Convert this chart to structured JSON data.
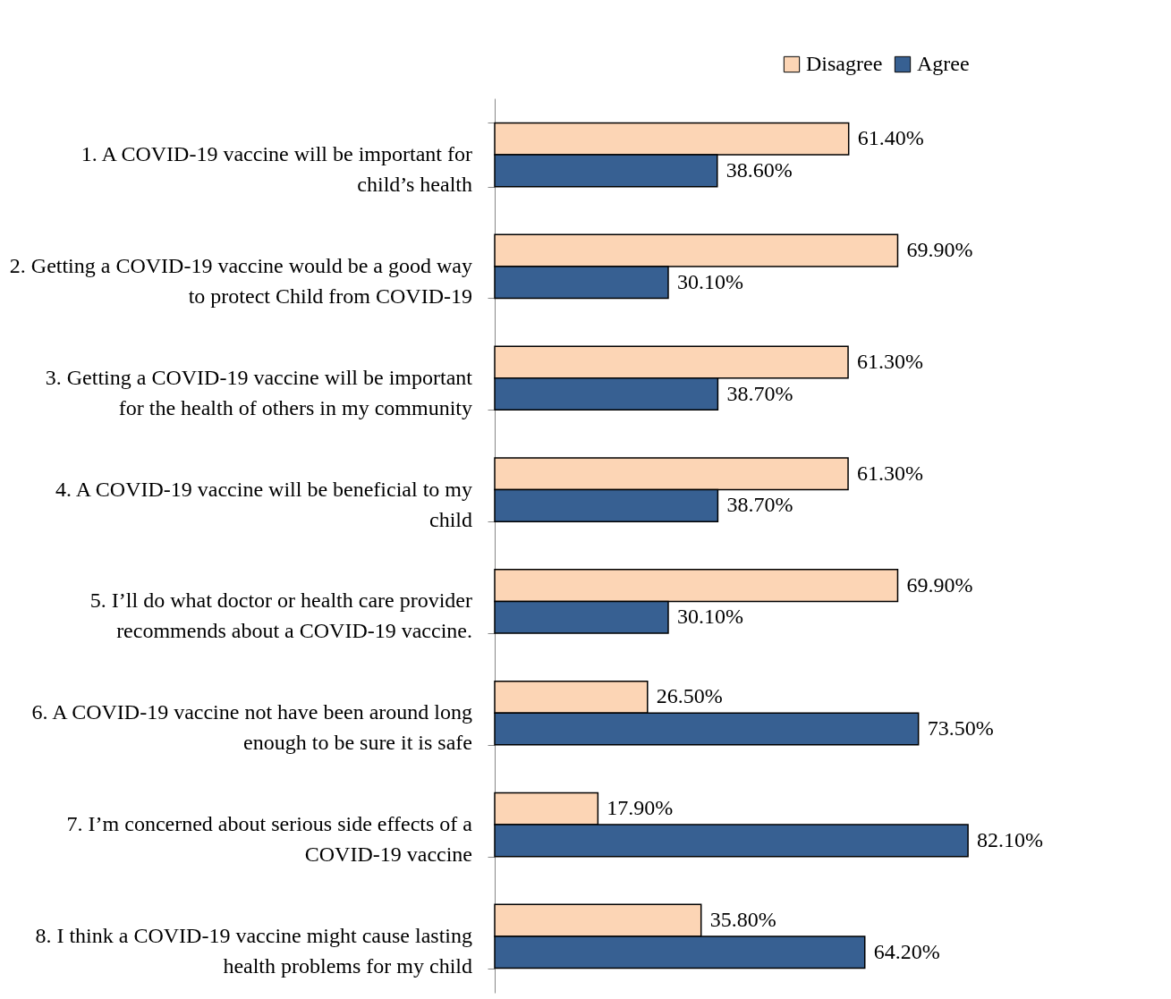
{
  "chart_data": {
    "type": "bar",
    "orientation": "horizontal",
    "categories": [
      "1. A COVID-19 vaccine will be important for child’s health",
      "2. Getting a COVID-19 vaccine would be a good way to protect Child from COVID-19",
      "3. Getting a COVID-19 vaccine will be important for the health of others in my community",
      "4. A COVID-19 vaccine will be beneficial to my child",
      "5. I’ll do what doctor or health care provider recommends about a COVID-19 vaccine.",
      "6. A COVID-19 vaccine not have been around long enough to be sure it is safe",
      "7. I’m concerned about serious side effects of a COVID-19 vaccine",
      "8. I think a COVID-19 vaccine might cause lasting health problems for my child"
    ],
    "series": [
      {
        "name": "Disagree",
        "color": "#fcd5b5",
        "values": [
          61.4,
          69.9,
          61.3,
          61.3,
          69.9,
          26.5,
          17.9,
          35.8
        ],
        "value_labels": [
          "61.40%",
          "69.90%",
          "61.30%",
          "61.30%",
          "69.90%",
          "26.50%",
          "17.90%",
          "35.80%"
        ]
      },
      {
        "name": "Agree",
        "color": "#376092",
        "values": [
          38.6,
          30.1,
          38.7,
          38.7,
          30.1,
          73.5,
          82.1,
          64.2
        ],
        "value_labels": [
          "38.60%",
          "30.10%",
          "38.70%",
          "38.70%",
          "30.10%",
          "73.50%",
          "82.10%",
          "64.20%"
        ]
      }
    ],
    "legend": "top right",
    "grid": false
  }
}
